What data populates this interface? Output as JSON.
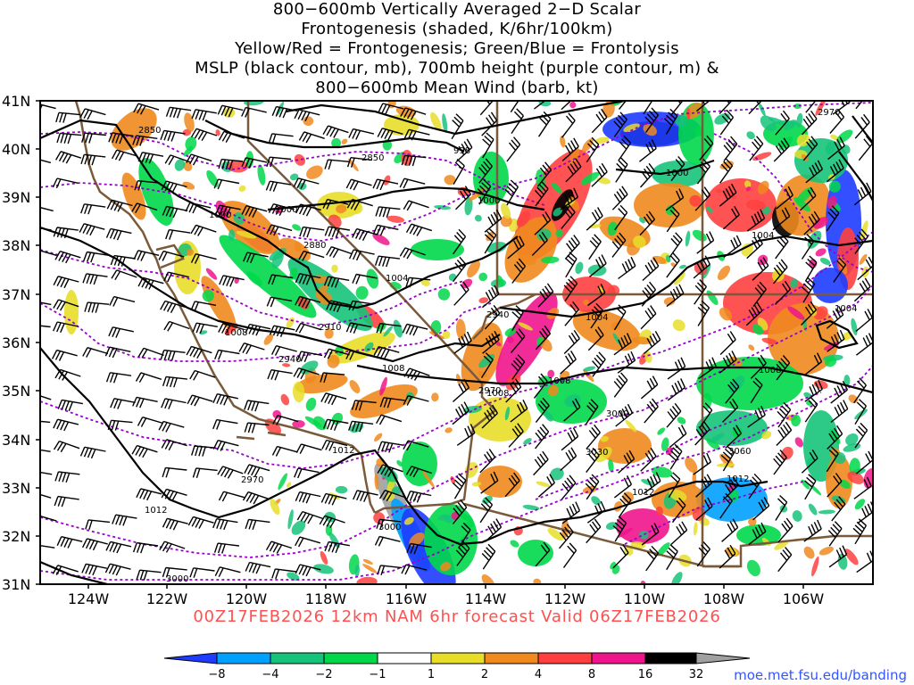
{
  "title_lines": [
    "800−600mb Vertically Averaged 2−D Scalar",
    "Frontogenesis (shaded, K/6hr/100km)",
    "Yellow/Red = Frontogenesis;  Green/Blue = Frontolysis",
    "MSLP (black contour, mb), 700mb height (purple contour, m) &",
    "800−600mb Mean Wind (barb, kt)"
  ],
  "footer": "00Z17FEB2026 12km NAM 6hr forecast Valid 06Z17FEB2026",
  "url": "moe.met.fsu.edu/banding",
  "axes": {
    "lat_labels": [
      "41N",
      "40N",
      "39N",
      "38N",
      "37N",
      "36N",
      "35N",
      "34N",
      "33N",
      "32N",
      "31N"
    ],
    "lon_labels": [
      "124W",
      "122W",
      "120W",
      "118W",
      "116W",
      "114W",
      "112W",
      "110W",
      "108W",
      "106W"
    ]
  },
  "colorbar": {
    "labels": [
      "−8",
      "−4",
      "−2",
      "−1",
      "1",
      "2",
      "4",
      "8",
      "16",
      "32"
    ],
    "colors": [
      "#1e3cff",
      "#00a0ff",
      "#16c37a",
      "#00d84a",
      "#ffffff",
      "#e8de2a",
      "#f08a1e",
      "#ff3f3f",
      "#f0148c",
      "#000000",
      "#a0a0a0"
    ]
  },
  "contour_labels": {
    "mslp": [
      "998",
      "1000",
      "1000",
      "1000",
      "1000",
      "1004",
      "1004",
      "1004",
      "1004",
      "1008",
      "1008",
      "1008",
      "1008",
      "1008",
      "1012",
      "1012",
      "1012",
      "1012"
    ],
    "height": [
      "2850",
      "2850",
      "2880",
      "2910",
      "2940",
      "2940",
      "2970",
      "2970",
      "2970",
      "3000",
      "3000",
      "3000",
      "3030",
      "3060"
    ]
  },
  "colors": {
    "mslp_contour": "#000000",
    "height_contour": "#9900cc",
    "boundaries": "#7a5a3a",
    "footer_text": "#ff5050",
    "url_text": "#3355ff"
  }
}
